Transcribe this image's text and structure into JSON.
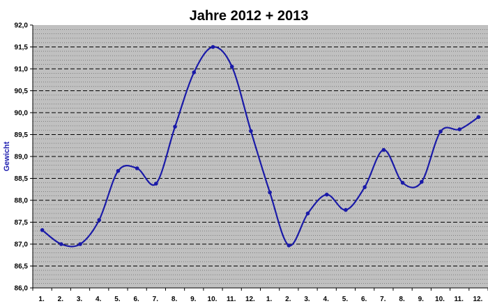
{
  "chart_data": {
    "type": "line",
    "title": "Jahre 2012 + 2013",
    "xlabel": "",
    "ylabel": "Gewicht",
    "categories": [
      "1.",
      "2.",
      "3.",
      "4.",
      "5.",
      "6.",
      "7.",
      "8.",
      "9.",
      "10.",
      "11.",
      "12.",
      "1.",
      "2.",
      "3.",
      "4.",
      "5.",
      "6.",
      "7.",
      "8.",
      "9.",
      "10.",
      "11.",
      "12."
    ],
    "values": [
      87.32,
      87.0,
      87.0,
      87.55,
      88.67,
      88.73,
      88.38,
      89.68,
      90.92,
      91.5,
      91.05,
      89.58,
      88.18,
      86.97,
      87.7,
      88.13,
      87.78,
      88.3,
      89.15,
      88.4,
      88.42,
      89.57,
      89.62,
      89.9
    ],
    "ylim": [
      86.0,
      92.0
    ],
    "y_ticks": [
      "86,0",
      "86,5",
      "87,0",
      "87,5",
      "88,0",
      "88,5",
      "89,0",
      "89,5",
      "90,0",
      "90,5",
      "91,0",
      "91,5",
      "92,0"
    ],
    "grid": true,
    "colors": {
      "line": "#1a1aa8",
      "plot_background": "#c0c0c0",
      "grid": "#000000"
    }
  }
}
